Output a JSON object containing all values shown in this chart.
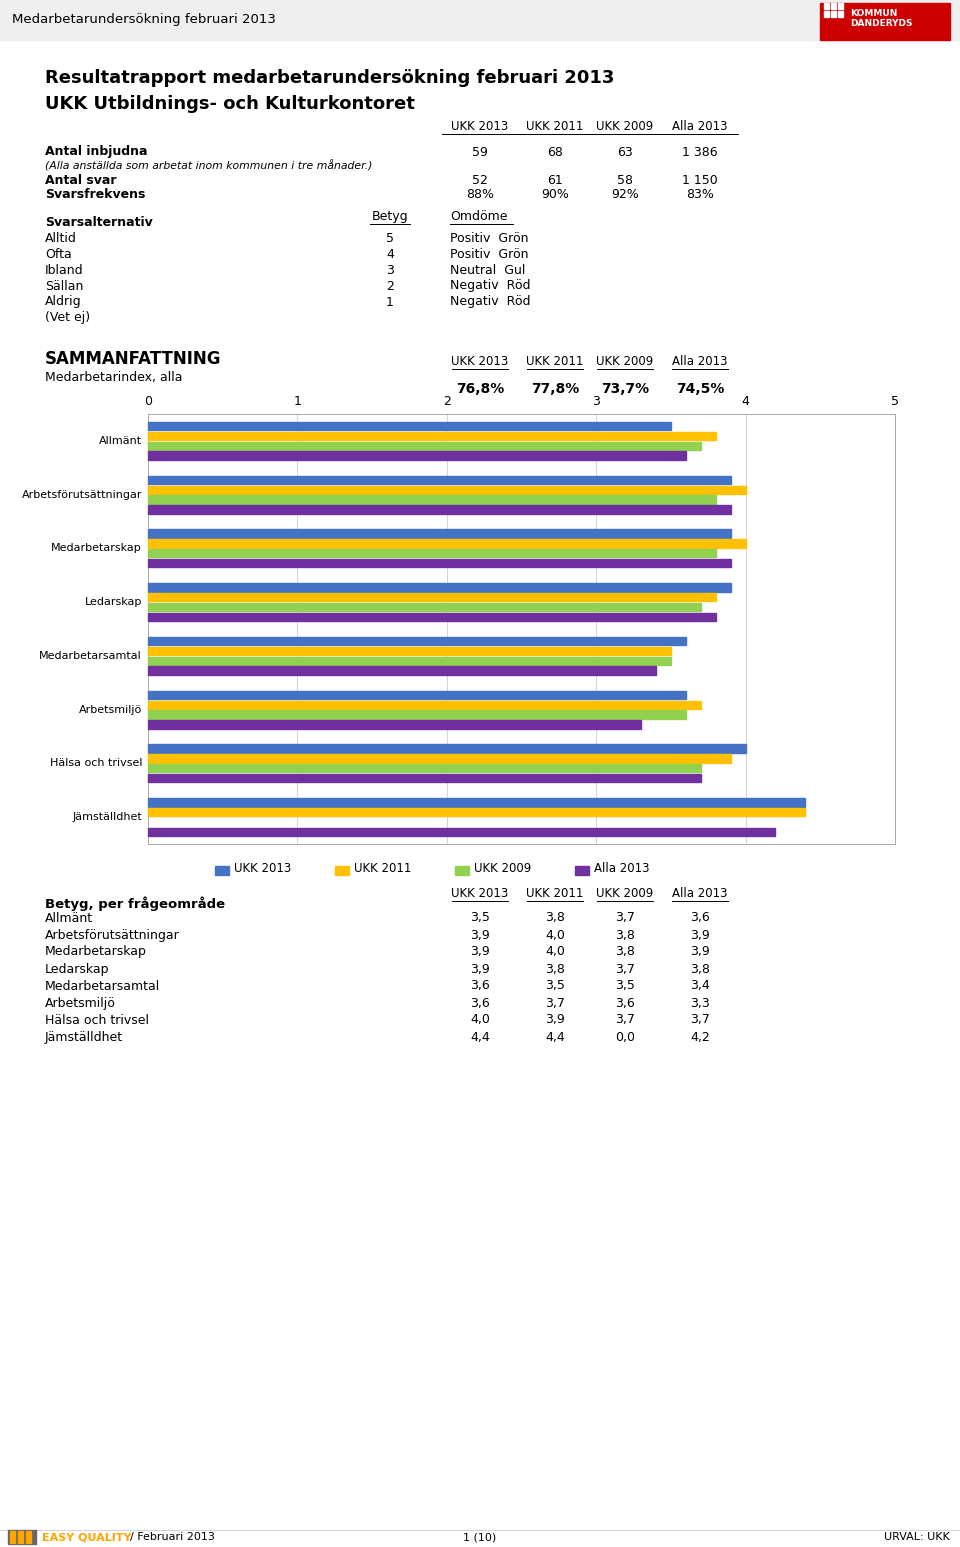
{
  "page_title": "Medarbetarundersökning februari 2013",
  "main_title_line1": "Resultatrapport medarbetarundersökning februari 2013",
  "main_title_line2": "UKK Utbildnings- och Kulturkontoret",
  "col_headers": [
    "UKK 2013",
    "UKK 2011",
    "UKK 2009",
    "Alla 2013"
  ],
  "antal_inbjudna_label": "Antal inbjudna",
  "antal_inbjudna_note": "(Alla anställda som arbetat inom kommunen i tre månader.)",
  "antal_inbjudna_values": [
    "59",
    "68",
    "63",
    "1 386"
  ],
  "antal_svar_label": "Antal svar",
  "antal_svar_values": [
    "52",
    "61",
    "58",
    "1 150"
  ],
  "svarsfrekvens_label": "Svarsfrekvens",
  "svarsfrekvens_values": [
    "88%",
    "90%",
    "92%",
    "83%"
  ],
  "svarsalternativ_label": "Svarsalternativ",
  "betyg_label": "Betyg",
  "omdome_label": "Omdöme",
  "svarsalternativ": [
    {
      "name": "Alltid",
      "betyg": "5",
      "omdome": "Positiv  Grön"
    },
    {
      "name": "Ofta",
      "betyg": "4",
      "omdome": "Positiv  Grön"
    },
    {
      "name": "Ibland",
      "betyg": "3",
      "omdome": "Neutral  Gul"
    },
    {
      "name": "Sällan",
      "betyg": "2",
      "omdome": "Negativ  Röd"
    },
    {
      "name": "Aldrig",
      "betyg": "1",
      "omdome": "Negativ  Röd"
    },
    {
      "name": "(Vet ej)",
      "betyg": "",
      "omdome": ""
    }
  ],
  "sammanfattning_title": "SAMMANFATTNING",
  "medarbetarindex_label": "Medarbetarindex, alla",
  "medarbetarindex_values": [
    "76,8%",
    "77,8%",
    "73,7%",
    "74,5%"
  ],
  "chart_categories": [
    "Allmänt",
    "Arbetsförutsättningar",
    "Medarbetarskap",
    "Ledarskap",
    "Medarbetarsamtal",
    "Arbetsmiljö",
    "Hälsa och trivsel",
    "Jämställdhet"
  ],
  "chart_data": {
    "UKK 2013": [
      3.5,
      3.9,
      3.9,
      3.9,
      3.6,
      3.6,
      4.0,
      4.4
    ],
    "UKK 2011": [
      3.8,
      4.0,
      4.0,
      3.8,
      3.5,
      3.7,
      3.9,
      4.4
    ],
    "UKK 2009": [
      3.7,
      3.8,
      3.8,
      3.7,
      3.5,
      3.6,
      3.7,
      0.0
    ],
    "Alla 2013": [
      3.6,
      3.9,
      3.9,
      3.8,
      3.4,
      3.3,
      3.7,
      4.2
    ]
  },
  "bar_colors": {
    "UKK 2013": "#4472C4",
    "UKK 2011": "#FFC000",
    "UKK 2009": "#92D050",
    "Alla 2013": "#7030A0"
  },
  "betyg_table_title": "Betyg, per frågeområde",
  "betyg_table_data": {
    "UKK 2013": [
      3.5,
      3.9,
      3.9,
      3.9,
      3.6,
      3.6,
      4.0,
      4.4
    ],
    "UKK 2011": [
      3.8,
      4.0,
      4.0,
      3.8,
      3.5,
      3.7,
      3.9,
      4.4
    ],
    "UKK 2009": [
      3.7,
      3.8,
      3.8,
      3.7,
      3.5,
      3.6,
      3.7,
      0.0
    ],
    "Alla 2013": [
      3.6,
      3.9,
      3.9,
      3.8,
      3.4,
      3.3,
      3.7,
      4.2
    ]
  },
  "footer_left": "/ Februari 2013",
  "footer_center": "1 (10)",
  "footer_right": "URVAL: UKK",
  "bg_color": "#FFFFFF"
}
